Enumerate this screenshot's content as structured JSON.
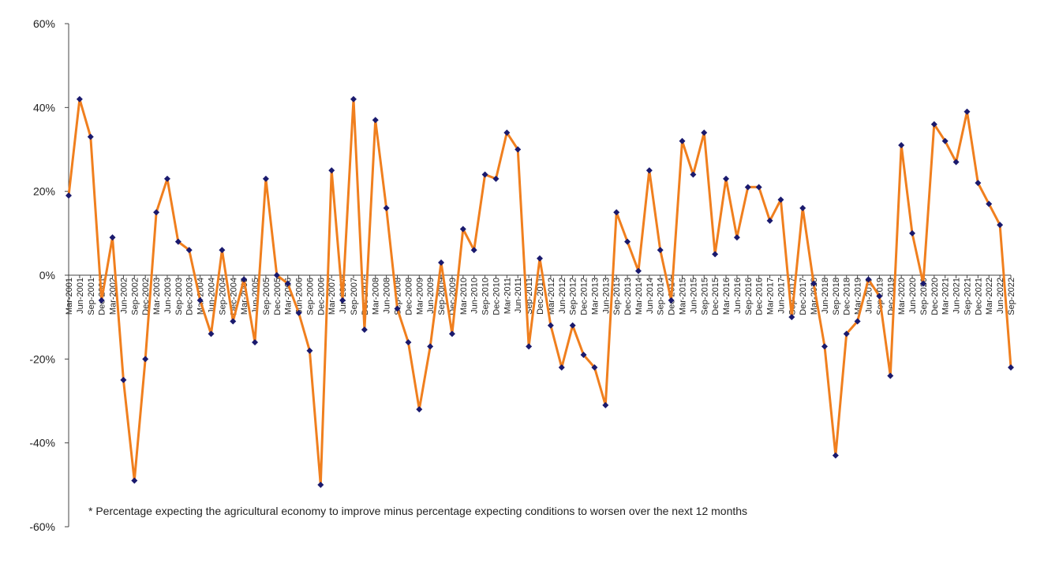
{
  "chart_data": {
    "type": "line",
    "title": "",
    "xlabel": "",
    "ylabel": "",
    "ylim": [
      -60,
      60
    ],
    "yticks": [
      60,
      40,
      20,
      0,
      -20,
      -40,
      -60
    ],
    "ytick_labels": [
      "60%",
      "40%",
      "20%",
      "0%",
      "-20%",
      "-40%",
      "-60%"
    ],
    "x": [
      "Mar-2001",
      "Jun-2001",
      "Sep-2001",
      "Dec-2001",
      "Mar-2002",
      "Jun-2002",
      "Sep-2002",
      "Dec-2002",
      "Mar-2003",
      "Jun-2003",
      "Sep-2003",
      "Dec-2003",
      "Mar-2004",
      "Jun-2004",
      "Sep-2004",
      "Dec-2004",
      "Mar-2005",
      "Jun-2005",
      "Sep-2005",
      "Dec-2005",
      "Mar-2006",
      "Jun-2006",
      "Sep-2006",
      "Dec-2006",
      "Mar-2007",
      "Jun-2007",
      "Sep-2007",
      "Dec-2007",
      "Mar-2008",
      "Jun-2008",
      "Sep-2008",
      "Dec-2008",
      "Mar-2009",
      "Jun-2009",
      "Sep-2009",
      "Dec-2009",
      "Mar-2010",
      "Jun-2010",
      "Sep-2010",
      "Dec-2010",
      "Mar-2011",
      "Jun-2011",
      "Sep-2011",
      "Dec-2011",
      "Mar-2012",
      "Jun-2012",
      "Sep-2012",
      "Dec-2012",
      "Mar-2013",
      "Jun-2013",
      "Sep-2013",
      "Dec-2013",
      "Mar-2014",
      "Jun-2014",
      "Sep-2014",
      "Dec-2014",
      "Mar-2015",
      "Jun-2015",
      "Sep-2015",
      "Dec-2015",
      "Mar-2016",
      "Jun-2016",
      "Sep-2016",
      "Dec-2016",
      "Mar-2017",
      "Jun-2017",
      "Sep-2017",
      "Dec-2017",
      "Mar-2018",
      "Jun-2018",
      "Sep-2018",
      "Dec-2018",
      "Mar-2019",
      "Jun-2019",
      "Sep-2019",
      "Dec-2019",
      "Mar-2020",
      "Jun-2020",
      "Sep-2020",
      "Dec-2020",
      "Mar-2021",
      "Jun-2021",
      "Sep-2021",
      "Dec-2021",
      "Mar-2022",
      "Jun-2022",
      "Sep-2022"
    ],
    "values": [
      19,
      42,
      33,
      -6,
      9,
      -25,
      -49,
      -20,
      15,
      23,
      8,
      6,
      -6,
      -14,
      6,
      -11,
      -1,
      -16,
      23,
      0,
      -2,
      -9,
      -18,
      -50,
      25,
      -6,
      42,
      -13,
      37,
      16,
      -8,
      -16,
      -32,
      -17,
      3,
      -14,
      11,
      6,
      24,
      23,
      34,
      30,
      -17,
      4,
      -12,
      -22,
      -12,
      -19,
      -22,
      -31,
      15,
      8,
      1,
      25,
      6,
      -6,
      32,
      24,
      34,
      5,
      23,
      9,
      21,
      21,
      13,
      18,
      -10,
      16,
      -2,
      -17,
      -43,
      -14,
      -11,
      -1,
      -5,
      -24,
      31,
      10,
      -2,
      36,
      32,
      27,
      39,
      22,
      17,
      12,
      -22
    ],
    "line_color": "#f07f1e",
    "marker_color": "#1a1a6e",
    "note": "* Percentage expecting the agricultural economy to improve minus percentage expecting conditions to worsen over the next 12 months"
  }
}
